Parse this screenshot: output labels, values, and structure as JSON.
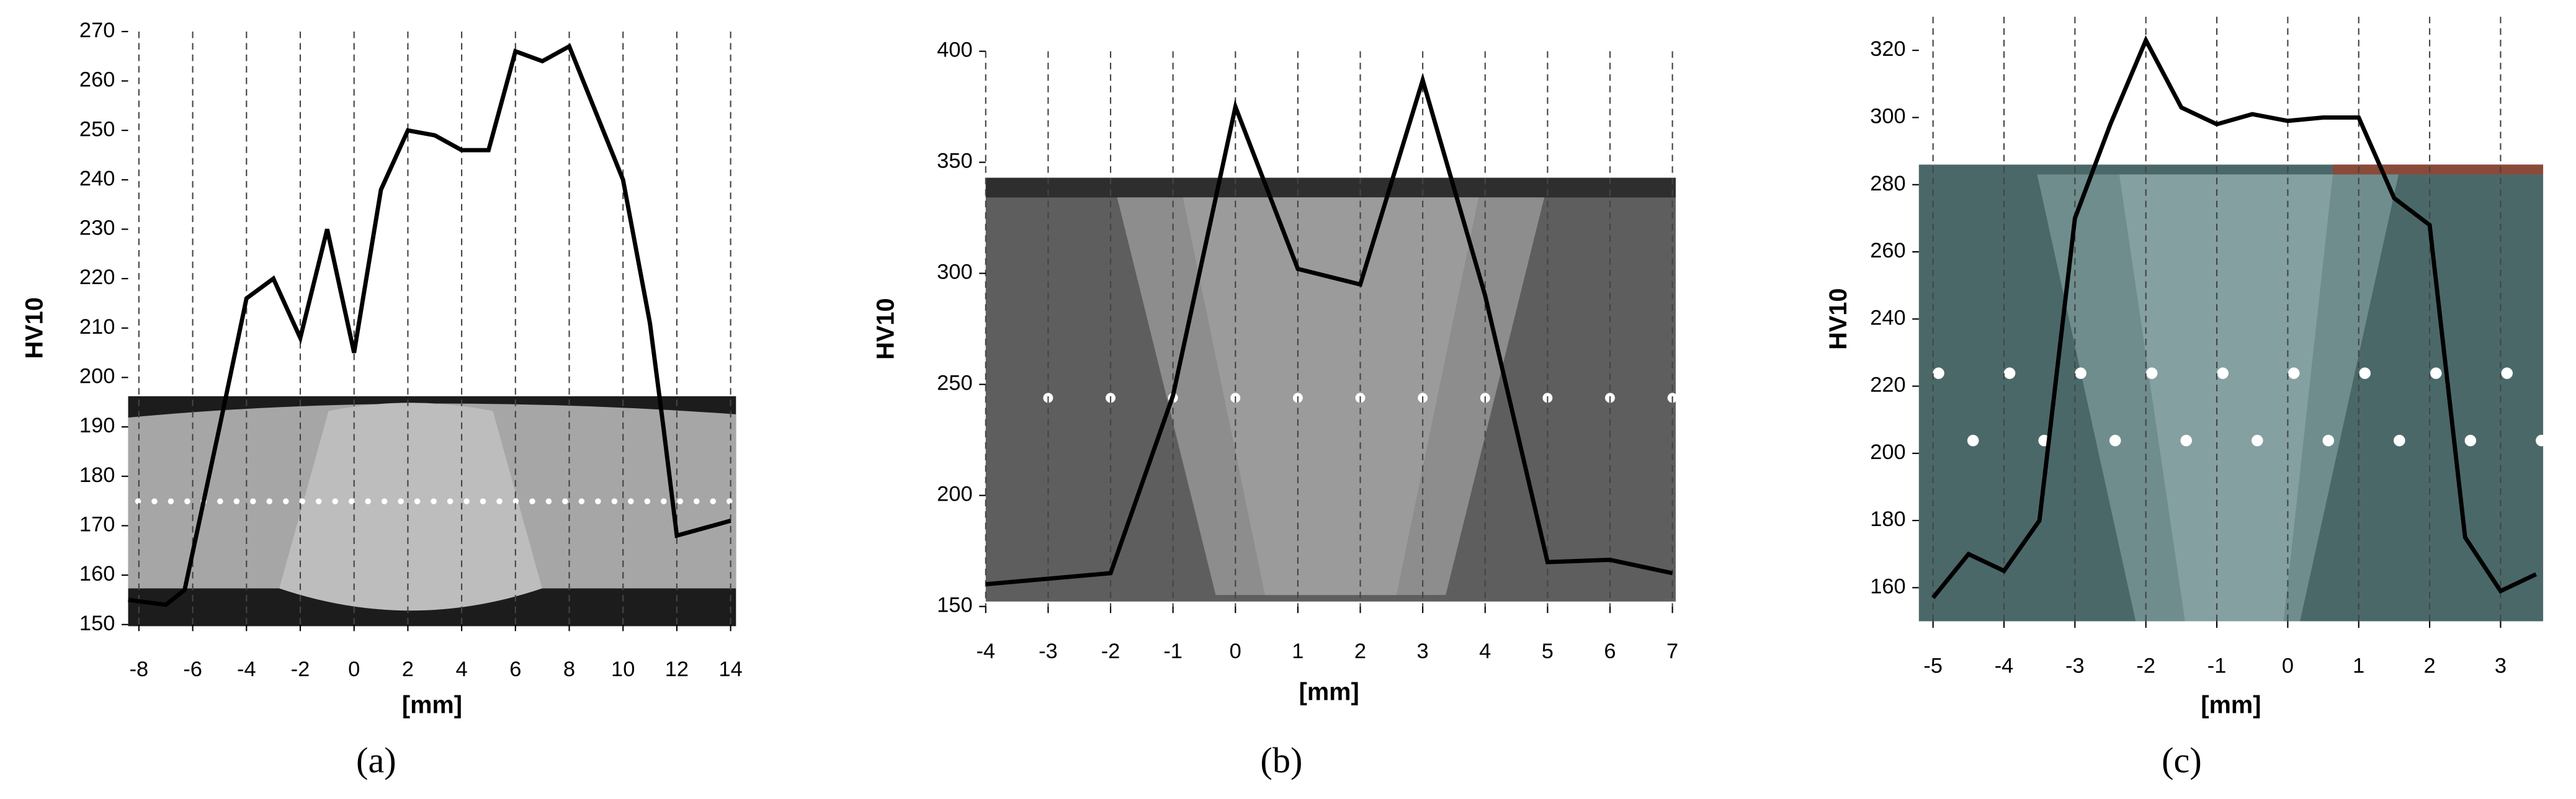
{
  "chart_data": [
    {
      "type": "line",
      "caption": "(a)",
      "ylabel": "HV10",
      "xlabel": "[mm]",
      "x": [
        -8.4,
        -7,
        -6.3,
        -5,
        -4,
        -3,
        -2,
        -1,
        0,
        1,
        2,
        3,
        4,
        5,
        6,
        7,
        8,
        10,
        11,
        11.5,
        12,
        14
      ],
      "values": [
        155,
        154,
        157,
        190,
        216,
        220,
        208,
        230,
        205,
        238,
        250,
        249,
        246,
        246,
        266,
        264,
        267,
        240,
        211,
        190,
        168,
        171
      ],
      "color": "#000000",
      "xlim": [
        -8.4,
        14.2
      ],
      "ylim": [
        150,
        270
      ],
      "xticks": [
        -8,
        -6,
        -4,
        -2,
        0,
        2,
        4,
        6,
        8,
        10,
        12,
        14
      ],
      "yticks": [
        150,
        160,
        170,
        180,
        190,
        200,
        210,
        220,
        230,
        240,
        250,
        260,
        270
      ],
      "grid": "x"
    },
    {
      "type": "line",
      "caption": "(b)",
      "ylabel": "HV10",
      "xlabel": "[mm]",
      "x": [
        -4,
        -2,
        -1,
        0,
        1,
        2,
        3,
        4,
        5,
        6,
        7
      ],
      "values": [
        160,
        165,
        245,
        375,
        302,
        295,
        387,
        290,
        170,
        171,
        165
      ],
      "color": "#000000",
      "xlim": [
        -4,
        7
      ],
      "ylim": [
        150,
        400
      ],
      "xticks": [
        -4,
        -3,
        -2,
        -1,
        0,
        1,
        2,
        3,
        4,
        5,
        6,
        7
      ],
      "yticks": [
        150,
        200,
        250,
        300,
        350,
        400
      ],
      "grid": "x"
    },
    {
      "type": "line",
      "caption": "(c)",
      "ylabel": "HV10",
      "xlabel": "[mm]",
      "x": [
        -5,
        -4.5,
        -4,
        -3.5,
        -3,
        -2.5,
        -2,
        -1.5,
        -1,
        -0.5,
        0,
        0.5,
        1,
        1.5,
        2,
        2.5,
        3,
        3.5
      ],
      "values": [
        157,
        170,
        165,
        180,
        270,
        298,
        323,
        303,
        298,
        301,
        299,
        300,
        300,
        276,
        268,
        175,
        159,
        164
      ],
      "color": "#000000",
      "xlim": [
        -5.2,
        3.6
      ],
      "ylim": [
        150,
        330
      ],
      "xticks": [
        -5,
        -4,
        -3,
        -2,
        -1,
        0,
        1,
        2,
        3
      ],
      "yticks": [
        160,
        180,
        200,
        220,
        240,
        260,
        280,
        300,
        320
      ],
      "grid": "x"
    }
  ]
}
